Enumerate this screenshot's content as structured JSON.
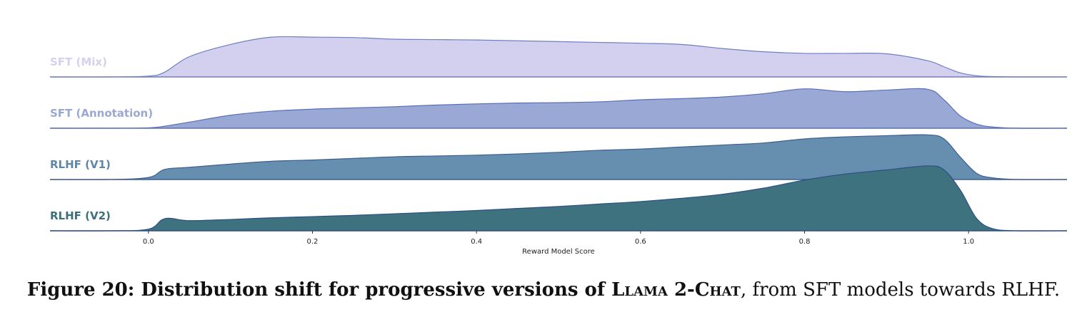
{
  "chart_data": {
    "type": "area",
    "subtype": "ridgeline",
    "title": "",
    "xlabel": "Reward Model Score",
    "ylabel": "",
    "xlim": [
      -0.12,
      1.12
    ],
    "xticks": [
      "0.0",
      "0.2",
      "0.4",
      "0.6",
      "0.8",
      "1.0"
    ],
    "tick_values": [
      0.0,
      0.2,
      0.4,
      0.6,
      0.8,
      1.0
    ],
    "grid": false,
    "legend": "none",
    "x": [
      -0.05,
      0.0,
      0.02,
      0.05,
      0.1,
      0.15,
      0.2,
      0.25,
      0.3,
      0.35,
      0.4,
      0.45,
      0.5,
      0.55,
      0.6,
      0.65,
      0.7,
      0.75,
      0.8,
      0.85,
      0.9,
      0.95,
      0.97,
      0.99,
      1.01,
      1.03,
      1.06
    ],
    "series": [
      {
        "name": "SFT (Mix)",
        "color": "#d3cfef",
        "label_color": "#d5d0ee",
        "line_color": "#6f7fc0",
        "values": [
          0,
          0.02,
          0.12,
          0.5,
          0.8,
          0.98,
          0.98,
          0.97,
          0.93,
          0.92,
          0.91,
          0.89,
          0.87,
          0.85,
          0.83,
          0.8,
          0.7,
          0.62,
          0.58,
          0.58,
          0.57,
          0.4,
          0.25,
          0.1,
          0.03,
          0.01,
          0
        ]
      },
      {
        "name": "SFT (Annotation)",
        "color": "#9aa8d6",
        "label_color": "#9aa8d6",
        "line_color": "#5a6fb5",
        "values": [
          0,
          0.01,
          0.05,
          0.15,
          0.32,
          0.42,
          0.47,
          0.5,
          0.53,
          0.57,
          0.6,
          0.62,
          0.63,
          0.65,
          0.7,
          0.73,
          0.77,
          0.85,
          0.97,
          0.9,
          0.94,
          0.96,
          0.7,
          0.3,
          0.1,
          0.03,
          0
        ]
      },
      {
        "name": "RLHF (V1)",
        "color": "#668eae",
        "label_color": "#5d86a8",
        "line_color": "#3e5f90",
        "values": [
          0,
          0.05,
          0.25,
          0.3,
          0.38,
          0.45,
          0.48,
          0.52,
          0.56,
          0.58,
          0.6,
          0.63,
          0.67,
          0.72,
          0.75,
          0.8,
          0.85,
          0.9,
          1.0,
          1.05,
          1.08,
          1.1,
          1.0,
          0.55,
          0.15,
          0.04,
          0
        ]
      },
      {
        "name": "RLHF (V2)",
        "color": "#3d727e",
        "label_color": "#3c6f7c",
        "line_color": "#2d4f85",
        "values": [
          0,
          0.04,
          0.3,
          0.25,
          0.28,
          0.32,
          0.35,
          0.38,
          0.42,
          0.46,
          0.5,
          0.55,
          0.6,
          0.66,
          0.72,
          0.8,
          0.9,
          1.05,
          1.25,
          1.4,
          1.5,
          1.6,
          1.5,
          1.0,
          0.3,
          0.05,
          0
        ]
      }
    ]
  },
  "caption": {
    "prefix": "Figure 20: Distribution shift for progressive versions of ",
    "model_name": "Llama 2-Chat",
    "suffix": ", from SFT models towards RLHF."
  }
}
